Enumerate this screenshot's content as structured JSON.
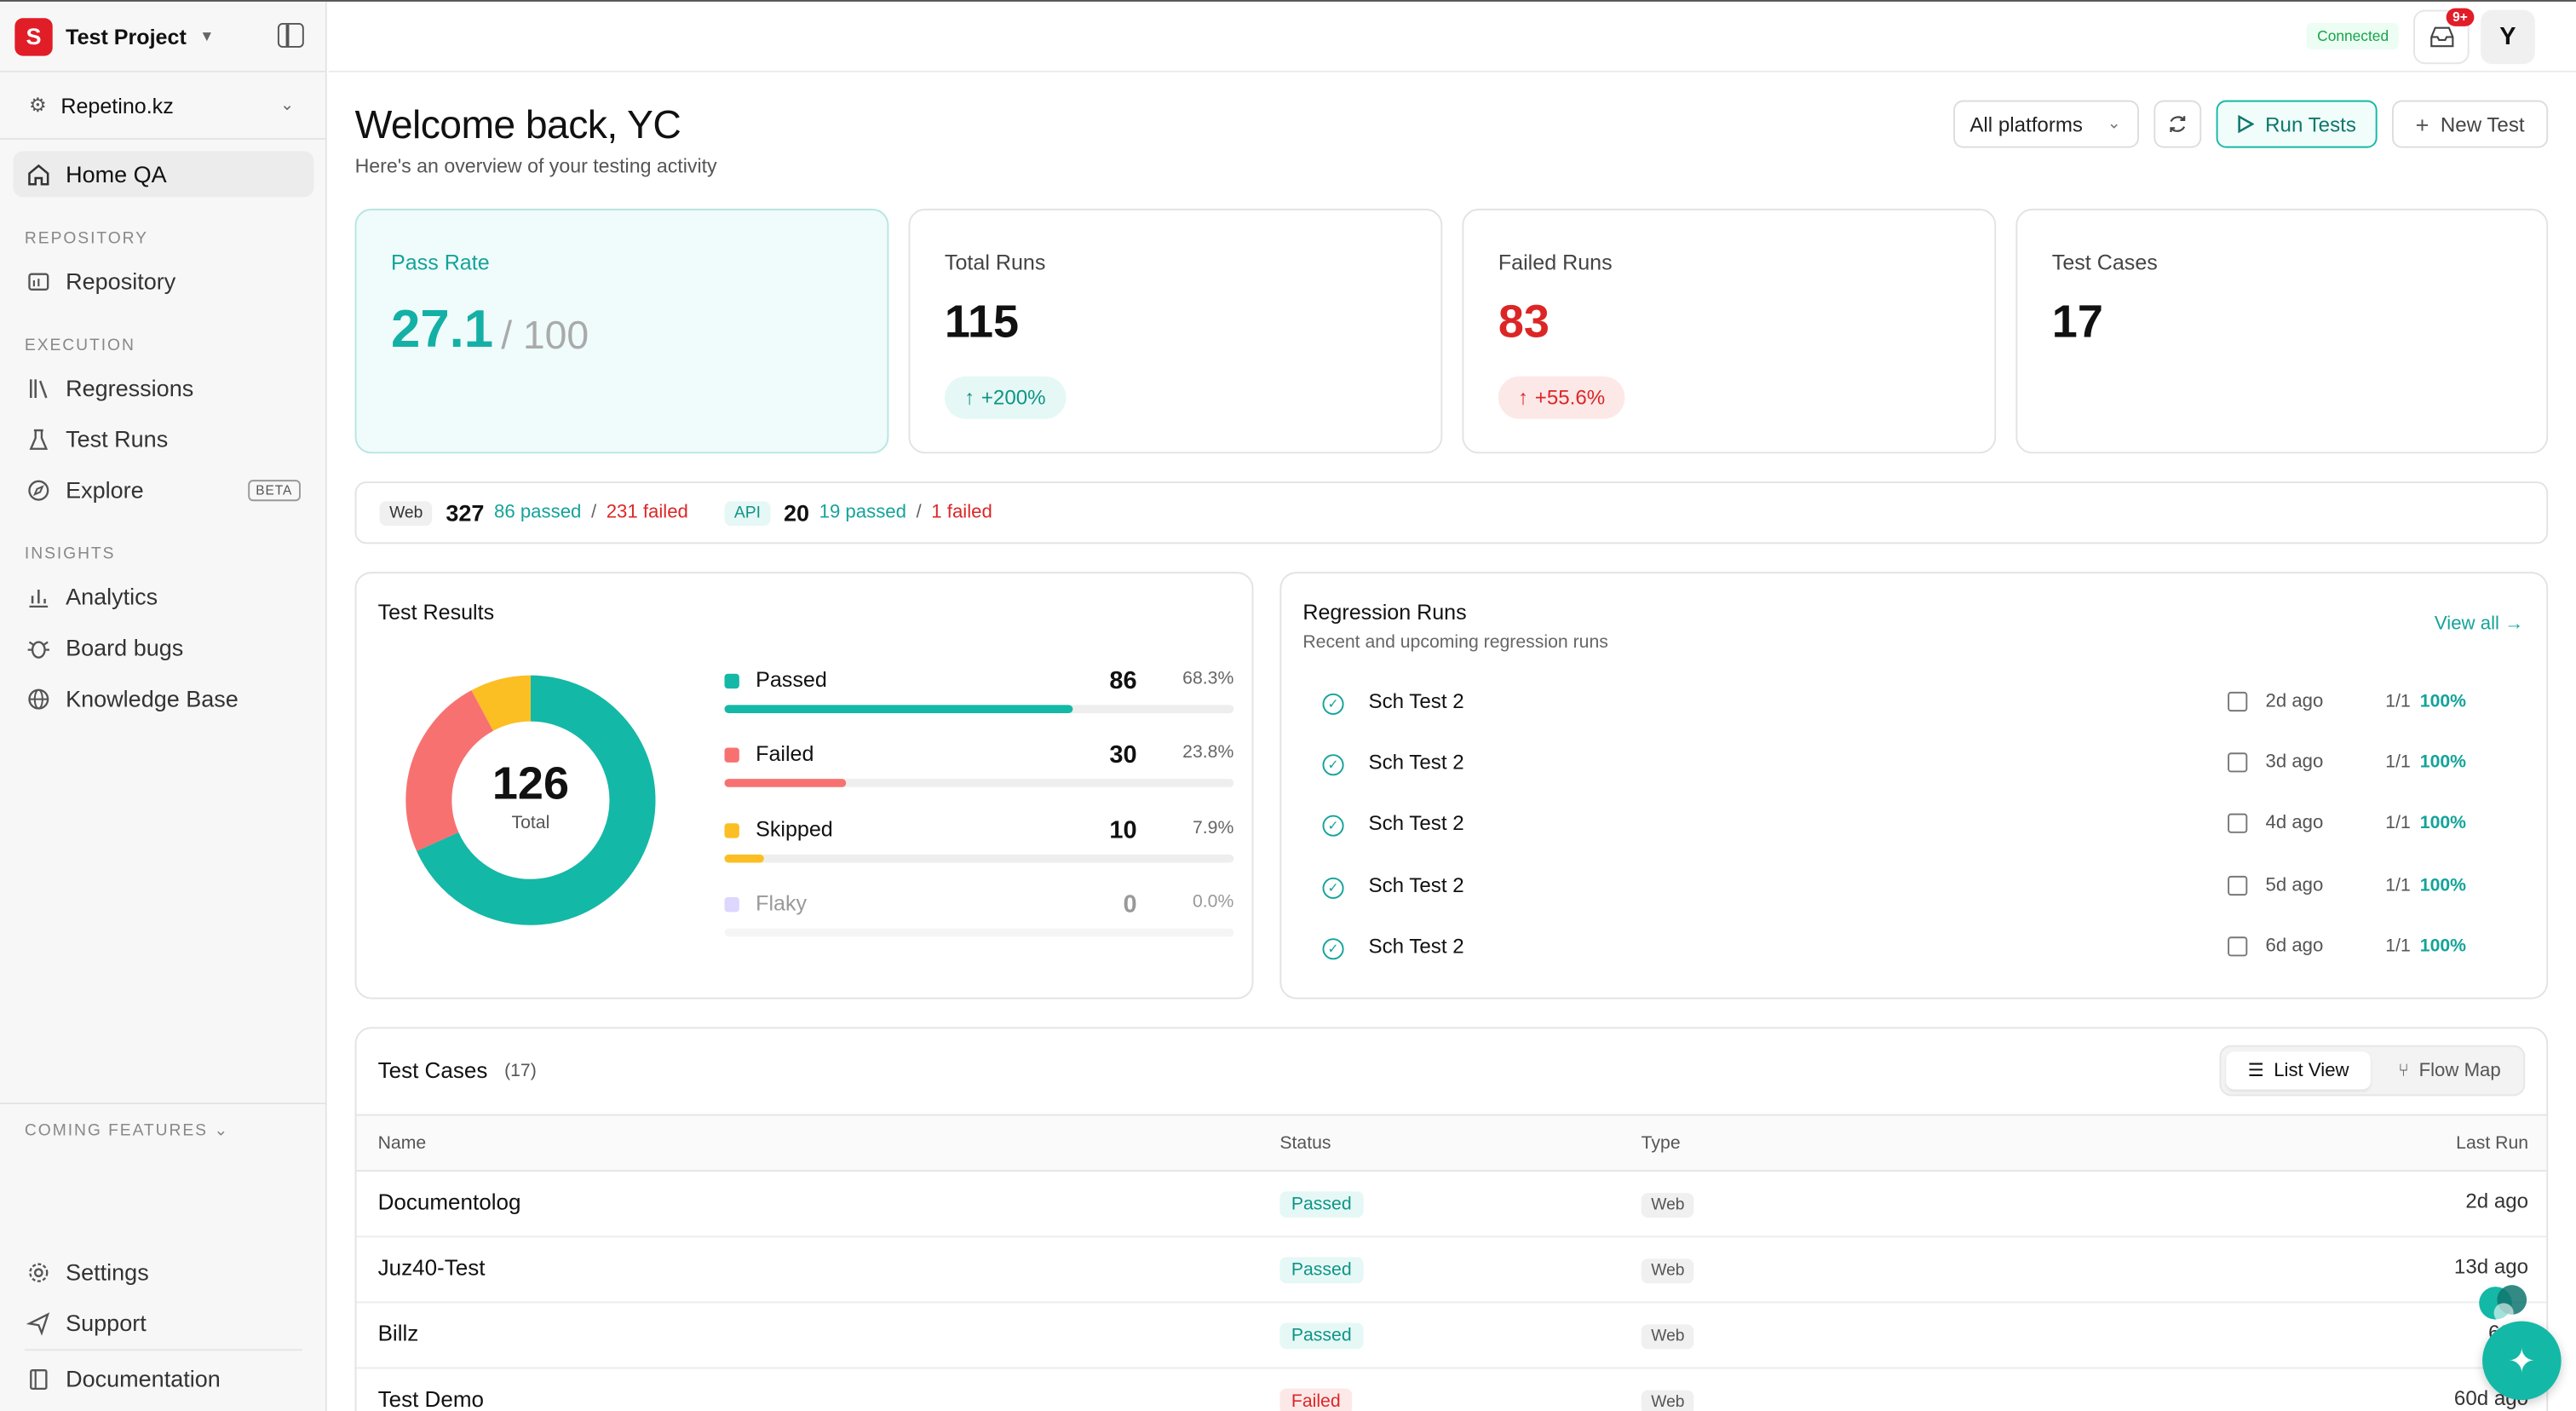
{
  "sidebar": {
    "project_name": "Test Project",
    "org_name": "Repetino.kz",
    "home": "Home QA",
    "sections": {
      "repository": "REPOSITORY",
      "execution": "EXECUTION",
      "insights": "INSIGHTS",
      "coming": "COMING FEATURES"
    },
    "items": {
      "repository": "Repository",
      "regressions": "Regressions",
      "test_runs": "Test Runs",
      "explore": "Explore",
      "explore_badge": "BETA",
      "analytics": "Analytics",
      "board_bugs": "Board bugs",
      "knowledge_base": "Knowledge Base",
      "settings": "Settings",
      "support": "Support",
      "documentation": "Documentation"
    }
  },
  "header": {
    "connection_status": "Connected",
    "inbox_badge": "9+",
    "avatar_initial": "Y"
  },
  "main": {
    "title": "Welcome back, YC",
    "subtitle": "Here's an overview of your testing activity",
    "platform_select": "All platforms",
    "run_tests": "Run Tests",
    "new_test": "New Test"
  },
  "stats": {
    "pass_rate": {
      "label": "Pass Rate",
      "value": "27.1",
      "of": "/ 100"
    },
    "total_runs": {
      "label": "Total Runs",
      "value": "115",
      "change": "+200%"
    },
    "failed_runs": {
      "label": "Failed Runs",
      "value": "83",
      "change": "+55.6%"
    },
    "test_cases": {
      "label": "Test Cases",
      "value": "17"
    }
  },
  "platforms": {
    "web": {
      "tag": "Web",
      "count": "327",
      "passed": "86 passed",
      "sep": "/",
      "failed": "231 failed"
    },
    "api": {
      "tag": "API",
      "count": "20",
      "passed": "19 passed",
      "sep": "/",
      "failed": "1 failed"
    }
  },
  "results": {
    "title": "Test Results",
    "total": "126",
    "total_label": "Total",
    "rows": [
      {
        "name": "Passed",
        "count": "86",
        "pct": "68.3%",
        "fraction": 0.683,
        "color": "#14b8a6"
      },
      {
        "name": "Failed",
        "count": "30",
        "pct": "23.8%",
        "fraction": 0.238,
        "color": "#f87171"
      },
      {
        "name": "Skipped",
        "count": "10",
        "pct": "7.9%",
        "fraction": 0.079,
        "color": "#fbbf24"
      },
      {
        "name": "Flaky",
        "count": "0",
        "pct": "0.0%",
        "fraction": 0,
        "color": "#ddd6fe"
      }
    ]
  },
  "regression": {
    "title": "Regression Runs",
    "subtitle": "Recent and upcoming regression runs",
    "view_all": "View all →",
    "rows": [
      {
        "name": "Sch Test 2",
        "ago": "2d ago",
        "frac": "1/1",
        "pct": "100%"
      },
      {
        "name": "Sch Test 2",
        "ago": "3d ago",
        "frac": "1/1",
        "pct": "100%"
      },
      {
        "name": "Sch Test 2",
        "ago": "4d ago",
        "frac": "1/1",
        "pct": "100%"
      },
      {
        "name": "Sch Test 2",
        "ago": "5d ago",
        "frac": "1/1",
        "pct": "100%"
      },
      {
        "name": "Sch Test 2",
        "ago": "6d ago",
        "frac": "1/1",
        "pct": "100%"
      }
    ]
  },
  "test_cases": {
    "title": "Test Cases",
    "count": "(17)",
    "list_view": "List View",
    "flow_map": "Flow Map",
    "columns": {
      "name": "Name",
      "status": "Status",
      "type": "Type",
      "last_run": "Last Run"
    },
    "rows": [
      {
        "name": "Documentolog",
        "status": "Passed",
        "type": "Web",
        "last_run": "2d ago"
      },
      {
        "name": "Juz40-Test",
        "status": "Passed",
        "type": "Web",
        "last_run": "13d ago"
      },
      {
        "name": "Billz",
        "status": "Passed",
        "type": "Web",
        "last_run": "60..."
      },
      {
        "name": "Test Demo",
        "status": "Failed",
        "type": "Web",
        "last_run": "60d ago"
      }
    ]
  }
}
